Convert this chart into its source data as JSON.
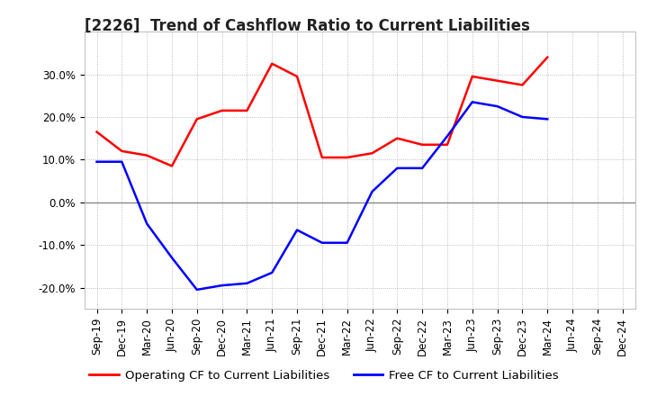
{
  "title": "[2226]  Trend of Cashflow Ratio to Current Liabilities",
  "ylim": [
    -0.25,
    0.4
  ],
  "yticks": [
    -0.2,
    -0.1,
    0.0,
    0.1,
    0.2,
    0.3
  ],
  "ytick_labels": [
    "-20.0%",
    "-10.0%",
    "0.0%",
    "10.0%",
    "20.0%",
    "30.0%"
  ],
  "x_labels": [
    "Sep-19",
    "Dec-19",
    "Mar-20",
    "Jun-20",
    "Sep-20",
    "Dec-20",
    "Mar-21",
    "Jun-21",
    "Sep-21",
    "Dec-21",
    "Mar-22",
    "Jun-22",
    "Sep-22",
    "Dec-22",
    "Mar-23",
    "Jun-23",
    "Sep-23",
    "Dec-23",
    "Mar-24",
    "Jun-24",
    "Sep-24",
    "Dec-24"
  ],
  "operating_cf": [
    0.165,
    0.12,
    0.11,
    0.085,
    0.195,
    0.215,
    0.215,
    0.325,
    0.295,
    0.105,
    0.105,
    0.115,
    0.15,
    0.135,
    0.135,
    0.295,
    0.285,
    0.275,
    0.34,
    null,
    null,
    null
  ],
  "free_cf": [
    0.095,
    0.095,
    -0.05,
    -0.13,
    -0.205,
    -0.195,
    -0.19,
    -0.165,
    -0.065,
    -0.095,
    -0.095,
    0.025,
    0.08,
    0.08,
    0.155,
    0.235,
    0.225,
    0.2,
    0.195,
    null,
    null,
    null
  ],
  "operating_color": "#ff0000",
  "free_color": "#0000ff",
  "bg_color": "#ffffff",
  "grid_color": "#aaaaaa",
  "zero_line_color": "#888888",
  "legend_op_label": "Operating CF to Current Liabilities",
  "legend_free_label": "Free CF to Current Liabilities",
  "title_fontsize": 12,
  "tick_fontsize": 8.5,
  "legend_fontsize": 9.5
}
